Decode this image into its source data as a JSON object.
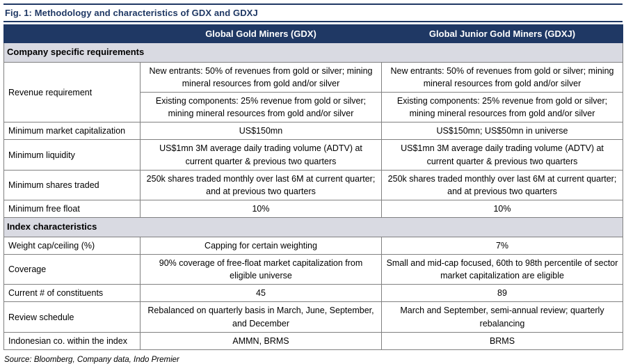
{
  "figure": {
    "title": "Fig. 1: Methodology and characteristics of GDX and GDXJ",
    "source": "Source: Bloomberg, Company data, Indo Premier"
  },
  "table": {
    "header": {
      "col1": "",
      "col2": "Global Gold Miners (GDX)",
      "col3": "Global Junior Gold Miners (GDXJ)"
    },
    "section1": {
      "title": "Company specific requirements",
      "revenue": {
        "label": "Revenue requirement",
        "new_entrants_gdx": "New entrants: 50% of revenues from gold or silver; mining mineral resources from gold and/or silver",
        "new_entrants_gdxj": "New entrants: 50% of revenues from gold or silver; mining mineral resources from gold and/or silver",
        "existing_gdx": "Existing components: 25% revenue from gold or silver; mining mineral resources from gold and/or silver",
        "existing_gdxj": "Existing components: 25% revenue from gold or silver; mining mineral resources from gold and/or silver"
      },
      "rows": [
        {
          "label": "Minimum market capitalization",
          "gdx": "US$150mn",
          "gdxj": "US$150mn; US$50mn in universe"
        },
        {
          "label": "Minimum liquidity",
          "gdx": "US$1mn 3M average daily trading volume (ADTV) at current quarter & previous two quarters",
          "gdxj": "US$1mn 3M average daily trading volume (ADTV) at current quarter & previous two quarters"
        },
        {
          "label": "Minimum shares traded",
          "gdx": "250k shares traded monthly over last 6M at current quarter; and at previous two quarters",
          "gdxj": "250k shares traded monthly over last 6M at current quarter; and at previous two quarters"
        },
        {
          "label": "Minimum free float",
          "gdx": "10%",
          "gdxj": "10%"
        }
      ]
    },
    "section2": {
      "title": "Index characteristics",
      "rows": [
        {
          "label": "Weight cap/ceiling (%)",
          "gdx": "Capping for certain weighting",
          "gdxj": "7%"
        },
        {
          "label": "Coverage",
          "gdx": "90% coverage of free-float market capitalization from eligible universe",
          "gdxj": "Small and mid-cap focused, 60th to 98th percentile of sector market capitalization are eligible"
        },
        {
          "label": "Current # of constituents",
          "gdx": "45",
          "gdxj": "89"
        },
        {
          "label": "Review schedule",
          "gdx": "Rebalanced on quarterly basis in March, June, September, and December",
          "gdxj": "March and September, semi-annual review; quarterly rebalancing"
        },
        {
          "label": "Indonesian co. within the index",
          "gdx": "AMMN, BRMS",
          "gdxj": "BRMS"
        }
      ]
    }
  }
}
